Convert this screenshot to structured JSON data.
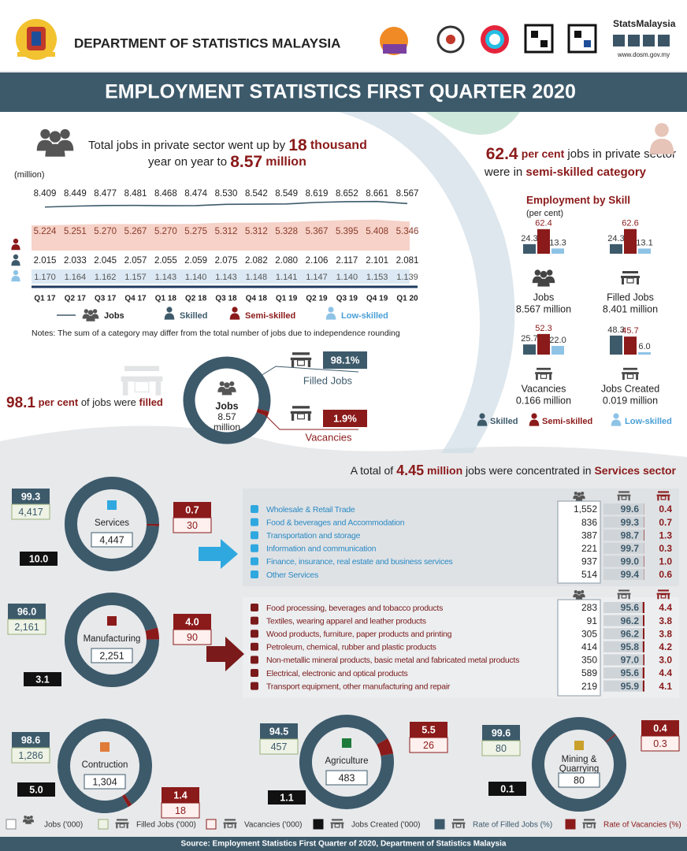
{
  "header": {
    "org": "DEPARTMENT OF STATISTICS MALAYSIA",
    "brand": "StatsMalaysia",
    "url": "www.dosm.gov.my"
  },
  "title": "EMPLOYMENT STATISTICS FIRST QUARTER 2020",
  "headline": {
    "text1": "Total jobs in private sector went up by",
    "value1": "18",
    "unit1": "thousand",
    "text2": "year on year to",
    "value2": "8.57",
    "unit2": "million"
  },
  "trend": {
    "unit": "(million)",
    "quarters": [
      "Q1 17",
      "Q2 17",
      "Q3 17",
      "Q4 17",
      "Q1 18",
      "Q2 18",
      "Q3 18",
      "Q4 18",
      "Q1 19",
      "Q2 19",
      "Q3 19",
      "Q4 19",
      "Q1 20"
    ],
    "jobs": [
      "8.409",
      "8.449",
      "8.477",
      "8.481",
      "8.468",
      "8.474",
      "8.530",
      "8.542",
      "8.549",
      "8.619",
      "8.652",
      "8.661",
      "8.567"
    ],
    "semi_skilled": [
      "5.224",
      "5.251",
      "5.270",
      "5.267",
      "5.270",
      "5.275",
      "5.312",
      "5.312",
      "5.328",
      "5.367",
      "5.395",
      "5.408",
      "5.346"
    ],
    "skilled": [
      "2.015",
      "2.033",
      "2.045",
      "2.057",
      "2.055",
      "2.059",
      "2.075",
      "2.082",
      "2.080",
      "2.106",
      "2.117",
      "2.101",
      "2.081"
    ],
    "low_skilled": [
      "1.170",
      "1.164",
      "1.162",
      "1.157",
      "1.143",
      "1.140",
      "1.143",
      "1.148",
      "1.141",
      "1.147",
      "1.140",
      "1.153",
      "1.139"
    ],
    "legend": {
      "jobs": "Jobs",
      "skilled": "Skilled",
      "semi_skilled": "Semi-skilled",
      "low_skilled": "Low-skilled"
    },
    "note": "Notes: The sum of a category may differ from the total number of jobs due to independence rounding"
  },
  "skill": {
    "headline": {
      "value": "62.4",
      "text1": "per cent",
      "text2": "jobs in private sector",
      "text3": "were in",
      "text4": "semi-skilled category"
    },
    "title": "Employment by Skill",
    "unit": "(per cent)",
    "groups": [
      {
        "name": "Jobs",
        "total": "8.567 million",
        "values": [
          "24.3",
          "62.4",
          "13.3"
        ]
      },
      {
        "name": "Filled Jobs",
        "total": "8.401 million",
        "values": [
          "24.3",
          "62.6",
          "13.1"
        ]
      },
      {
        "name": "Vacancies",
        "total": "0.166 million",
        "values": [
          "25.7",
          "52.3",
          "22.0"
        ]
      },
      {
        "name": "Jobs Created",
        "total": "0.019 million",
        "values": [
          "48.3",
          "45.7",
          "6.0"
        ]
      }
    ]
  },
  "filled": {
    "value": "98.1",
    "text1": "per cent",
    "text2": "of jobs were",
    "text3": "filled",
    "center": {
      "label": "Jobs",
      "value": "8.57",
      "unit": "million"
    },
    "filled_rate": "98.1%",
    "filled_label": "Filled Jobs",
    "vacancy_rate": "1.9%",
    "vacancy_label": "Vacancies"
  },
  "services_headline": {
    "text1": "A total of",
    "value": "4.45",
    "unit": "million",
    "text2": "jobs were concentrated in",
    "sector": "Services sector"
  },
  "sectors": [
    {
      "name": "Services",
      "jobs": "4,447",
      "filled_jobs": "4,417",
      "vacancies": "30",
      "jobs_created": "10.0",
      "rate_filled": "99.3",
      "rate_vacancies": "0.7"
    },
    {
      "name": "Manufacturing",
      "jobs": "2,251",
      "filled_jobs": "2,161",
      "vacancies": "90",
      "jobs_created": "3.1",
      "rate_filled": "96.0",
      "rate_vacancies": "4.0"
    },
    {
      "name": "Contruction",
      "jobs": "1,304",
      "filled_jobs": "1,286",
      "vacancies": "18",
      "jobs_created": "5.0",
      "rate_filled": "98.6",
      "rate_vacancies": "1.4"
    },
    {
      "name": "Agriculture",
      "jobs": "483",
      "filled_jobs": "457",
      "vacancies": "26",
      "jobs_created": "1.1",
      "rate_filled": "94.5",
      "rate_vacancies": "5.5"
    },
    {
      "name": [
        "Mining &",
        "Quarrying"
      ],
      "jobs": "80",
      "filled_jobs": "80",
      "vacancies": "0.3",
      "jobs_created": "0.1",
      "rate_filled": "99.6",
      "rate_vacancies": "0.4"
    }
  ],
  "breakdowns": {
    "services": [
      {
        "name": "Wholesale & Retail Trade",
        "jobs": "1,552",
        "rate_filled": "99.6",
        "rate_vacancies": "0.4"
      },
      {
        "name": "Food & beverages and Accommodation",
        "jobs": "836",
        "rate_filled": "99.3",
        "rate_vacancies": "0.7"
      },
      {
        "name": "Transportation and storage",
        "jobs": "387",
        "rate_filled": "98.7",
        "rate_vacancies": "1.3"
      },
      {
        "name": "Information and communication",
        "jobs": "221",
        "rate_filled": "99.7",
        "rate_vacancies": "0.3"
      },
      {
        "name": "Finance, insurance, real estate and business services",
        "jobs": "937",
        "rate_filled": "99.0",
        "rate_vacancies": "1.0"
      },
      {
        "name": "Other Services",
        "jobs": "514",
        "rate_filled": "99.4",
        "rate_vacancies": "0.6"
      }
    ],
    "manufacturing": [
      {
        "name": "Food processing, beverages and tobacco products",
        "jobs": "283",
        "rate_filled": "95.6",
        "rate_vacancies": "4.4"
      },
      {
        "name": "Textiles, wearing apparel and leather products",
        "jobs": "91",
        "rate_filled": "96.2",
        "rate_vacancies": "3.8"
      },
      {
        "name": "Wood products, furniture, paper products and printing",
        "jobs": "305",
        "rate_filled": "96.2",
        "rate_vacancies": "3.8"
      },
      {
        "name": "Petroleum, chemical, rubber and plastic products",
        "jobs": "414",
        "rate_filled": "95.8",
        "rate_vacancies": "4.2"
      },
      {
        "name": "Non-metallic mineral products, basic metal and fabricated metal products",
        "jobs": "350",
        "rate_filled": "97.0",
        "rate_vacancies": "3.0"
      },
      {
        "name": "Electrical, electronic and optical products",
        "jobs": "589",
        "rate_filled": "95.6",
        "rate_vacancies": "4.4"
      },
      {
        "name": "Transport equipment, other manufacturing and repair",
        "jobs": "219",
        "rate_filled": "95.9",
        "rate_vacancies": "4.1"
      }
    ]
  },
  "legend": {
    "jobs": "Jobs ('000)",
    "filled_jobs": "Filled Jobs ('000)",
    "vacancies": "Vacancies ('000)",
    "jobs_created": "Jobs Created ('000)",
    "rate_filled": "Rate of Filled Jobs (%)",
    "rate_vacancies": "Rate of Vacancies (%)"
  },
  "source": "Source: Employment Statistics First Quarter of 2020, Department of Statistics Malaysia"
}
